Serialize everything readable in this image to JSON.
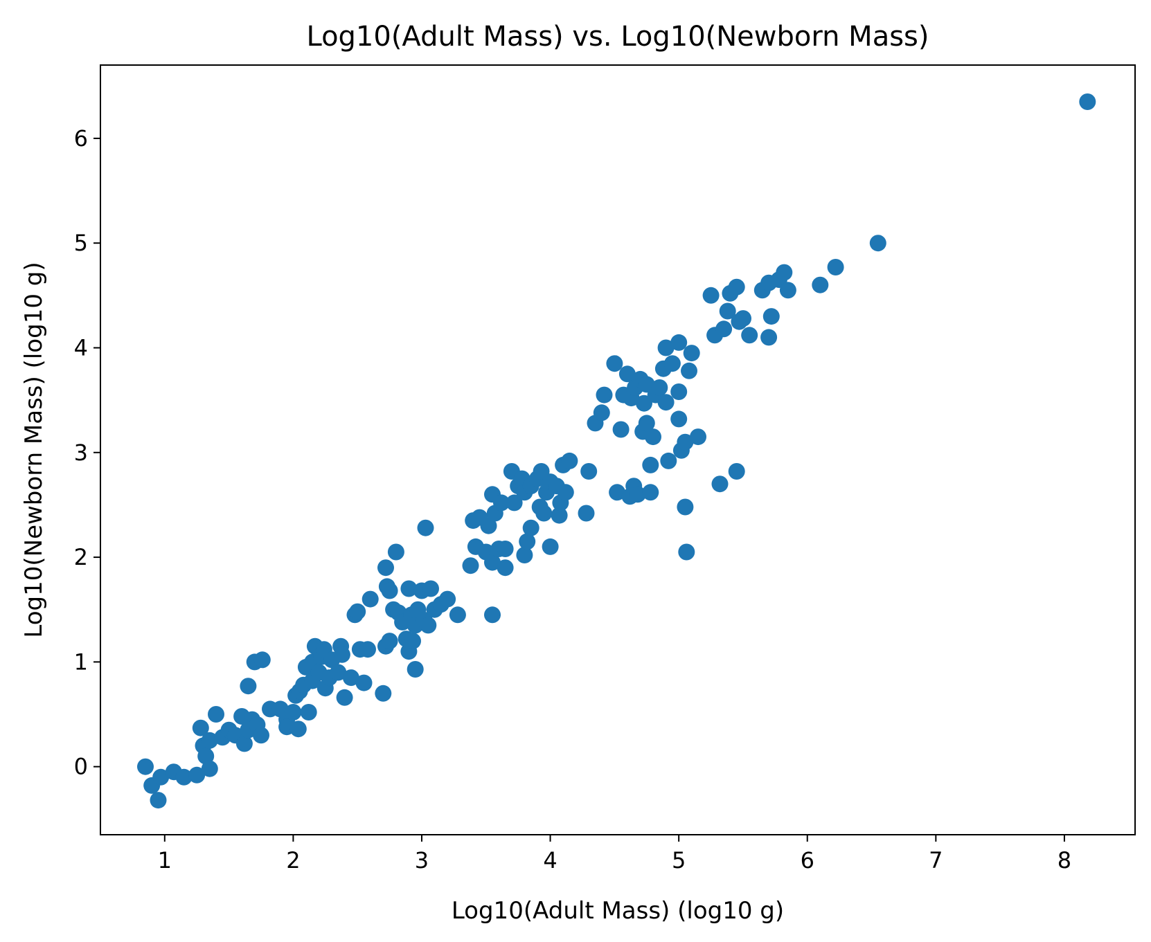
{
  "chart_data": {
    "type": "scatter",
    "title": "Log10(Adult Mass) vs. Log10(Newborn Mass)",
    "xlabel": "Log10(Adult Mass) (log10 g)",
    "ylabel": "Log10(Newborn Mass) (log10 g)",
    "xlim": [
      0.5,
      8.55
    ],
    "ylim": [
      -0.65,
      6.7
    ],
    "x_ticks": [
      1,
      2,
      3,
      4,
      5,
      6,
      7,
      8
    ],
    "y_ticks": [
      0,
      1,
      2,
      3,
      4,
      5,
      6
    ],
    "x_tick_labels": [
      "1",
      "2",
      "3",
      "4",
      "5",
      "6",
      "7",
      "8"
    ],
    "y_tick_labels": [
      "0",
      "1",
      "2",
      "3",
      "4",
      "5",
      "6"
    ],
    "grid": false,
    "marker_color": "#1f77b4",
    "points": [
      [
        0.85,
        0.0
      ],
      [
        0.9,
        -0.18
      ],
      [
        0.95,
        -0.32
      ],
      [
        0.97,
        -0.1
      ],
      [
        1.07,
        -0.05
      ],
      [
        1.15,
        -0.1
      ],
      [
        1.25,
        -0.08
      ],
      [
        1.28,
        0.37
      ],
      [
        1.3,
        0.2
      ],
      [
        1.32,
        0.1
      ],
      [
        1.35,
        -0.02
      ],
      [
        1.35,
        0.25
      ],
      [
        1.4,
        0.5
      ],
      [
        1.45,
        0.28
      ],
      [
        1.5,
        0.35
      ],
      [
        1.55,
        0.3
      ],
      [
        1.6,
        0.48
      ],
      [
        1.62,
        0.22
      ],
      [
        1.65,
        0.35
      ],
      [
        1.65,
        0.77
      ],
      [
        1.68,
        0.45
      ],
      [
        1.7,
        1.0
      ],
      [
        1.72,
        0.4
      ],
      [
        1.75,
        0.3
      ],
      [
        1.76,
        1.02
      ],
      [
        1.82,
        0.55
      ],
      [
        1.9,
        0.55
      ],
      [
        1.95,
        0.45
      ],
      [
        1.95,
        0.38
      ],
      [
        2.0,
        0.52
      ],
      [
        2.02,
        0.68
      ],
      [
        2.04,
        0.36
      ],
      [
        2.05,
        0.72
      ],
      [
        2.08,
        0.78
      ],
      [
        2.1,
        0.95
      ],
      [
        2.12,
        0.52
      ],
      [
        2.15,
        0.82
      ],
      [
        2.15,
        1.0
      ],
      [
        2.17,
        1.15
      ],
      [
        2.2,
        0.9
      ],
      [
        2.22,
        1.05
      ],
      [
        2.24,
        1.12
      ],
      [
        2.25,
        0.75
      ],
      [
        2.28,
        0.85
      ],
      [
        2.3,
        1.02
      ],
      [
        2.35,
        0.9
      ],
      [
        2.37,
        1.15
      ],
      [
        2.38,
        1.07
      ],
      [
        2.4,
        0.66
      ],
      [
        2.45,
        0.85
      ],
      [
        2.48,
        1.45
      ],
      [
        2.5,
        1.48
      ],
      [
        2.52,
        1.12
      ],
      [
        2.55,
        0.8
      ],
      [
        2.58,
        1.12
      ],
      [
        2.6,
        1.6
      ],
      [
        2.7,
        0.7
      ],
      [
        2.72,
        1.15
      ],
      [
        2.72,
        1.9
      ],
      [
        2.73,
        1.72
      ],
      [
        2.75,
        1.2
      ],
      [
        2.75,
        1.68
      ],
      [
        2.78,
        1.5
      ],
      [
        2.8,
        2.05
      ],
      [
        2.82,
        1.47
      ],
      [
        2.85,
        1.38
      ],
      [
        2.88,
        1.22
      ],
      [
        2.9,
        1.1
      ],
      [
        2.9,
        1.7
      ],
      [
        2.92,
        1.45
      ],
      [
        2.93,
        1.2
      ],
      [
        2.95,
        0.93
      ],
      [
        2.95,
        1.35
      ],
      [
        2.97,
        1.5
      ],
      [
        3.0,
        1.68
      ],
      [
        3.02,
        1.4
      ],
      [
        3.03,
        2.28
      ],
      [
        3.05,
        1.35
      ],
      [
        3.07,
        1.7
      ],
      [
        3.1,
        1.5
      ],
      [
        3.15,
        1.55
      ],
      [
        3.2,
        1.6
      ],
      [
        3.28,
        1.45
      ],
      [
        3.38,
        1.92
      ],
      [
        3.4,
        2.35
      ],
      [
        3.42,
        2.1
      ],
      [
        3.45,
        2.38
      ],
      [
        3.5,
        2.05
      ],
      [
        3.52,
        2.3
      ],
      [
        3.55,
        2.6
      ],
      [
        3.55,
        1.95
      ],
      [
        3.55,
        1.45
      ],
      [
        3.57,
        2.42
      ],
      [
        3.6,
        2.08
      ],
      [
        3.62,
        2.52
      ],
      [
        3.65,
        2.08
      ],
      [
        3.65,
        1.9
      ],
      [
        3.7,
        2.82
      ],
      [
        3.72,
        2.52
      ],
      [
        3.75,
        2.68
      ],
      [
        3.78,
        2.75
      ],
      [
        3.8,
        2.62
      ],
      [
        3.8,
        2.02
      ],
      [
        3.82,
        2.15
      ],
      [
        3.85,
        2.68
      ],
      [
        3.85,
        2.28
      ],
      [
        3.9,
        2.75
      ],
      [
        3.92,
        2.48
      ],
      [
        3.93,
        2.82
      ],
      [
        3.95,
        2.42
      ],
      [
        3.97,
        2.62
      ],
      [
        4.0,
        2.1
      ],
      [
        4.0,
        2.72
      ],
      [
        4.05,
        2.68
      ],
      [
        4.07,
        2.4
      ],
      [
        4.08,
        2.52
      ],
      [
        4.1,
        2.88
      ],
      [
        4.12,
        2.62
      ],
      [
        4.15,
        2.92
      ],
      [
        4.28,
        2.42
      ],
      [
        4.3,
        2.82
      ],
      [
        4.35,
        3.28
      ],
      [
        4.4,
        3.38
      ],
      [
        4.42,
        3.55
      ],
      [
        4.5,
        3.85
      ],
      [
        4.52,
        2.62
      ],
      [
        4.55,
        3.22
      ],
      [
        4.57,
        3.55
      ],
      [
        4.6,
        3.75
      ],
      [
        4.62,
        2.58
      ],
      [
        4.63,
        3.52
      ],
      [
        4.65,
        2.68
      ],
      [
        4.66,
        3.62
      ],
      [
        4.68,
        2.6
      ],
      [
        4.7,
        3.7
      ],
      [
        4.72,
        3.2
      ],
      [
        4.73,
        3.47
      ],
      [
        4.75,
        3.65
      ],
      [
        4.75,
        3.28
      ],
      [
        4.78,
        2.62
      ],
      [
        4.78,
        2.88
      ],
      [
        4.8,
        3.15
      ],
      [
        4.82,
        3.55
      ],
      [
        4.85,
        3.62
      ],
      [
        4.88,
        3.8
      ],
      [
        4.9,
        4.0
      ],
      [
        4.9,
        3.48
      ],
      [
        4.92,
        2.92
      ],
      [
        4.95,
        3.85
      ],
      [
        5.0,
        3.58
      ],
      [
        5.0,
        4.05
      ],
      [
        5.0,
        3.32
      ],
      [
        5.02,
        3.02
      ],
      [
        5.05,
        3.1
      ],
      [
        5.05,
        2.48
      ],
      [
        5.06,
        2.05
      ],
      [
        5.08,
        3.78
      ],
      [
        5.1,
        3.95
      ],
      [
        5.15,
        3.15
      ],
      [
        5.25,
        4.5
      ],
      [
        5.28,
        4.12
      ],
      [
        5.32,
        2.7
      ],
      [
        5.35,
        4.18
      ],
      [
        5.38,
        4.35
      ],
      [
        5.4,
        4.52
      ],
      [
        5.45,
        2.82
      ],
      [
        5.45,
        4.58
      ],
      [
        5.47,
        4.25
      ],
      [
        5.5,
        4.28
      ],
      [
        5.55,
        4.12
      ],
      [
        5.65,
        4.55
      ],
      [
        5.7,
        4.62
      ],
      [
        5.7,
        4.1
      ],
      [
        5.72,
        4.3
      ],
      [
        5.78,
        4.65
      ],
      [
        5.82,
        4.72
      ],
      [
        5.85,
        4.55
      ],
      [
        6.1,
        4.6
      ],
      [
        6.22,
        4.77
      ],
      [
        6.55,
        5.0
      ],
      [
        8.18,
        6.35
      ]
    ]
  }
}
